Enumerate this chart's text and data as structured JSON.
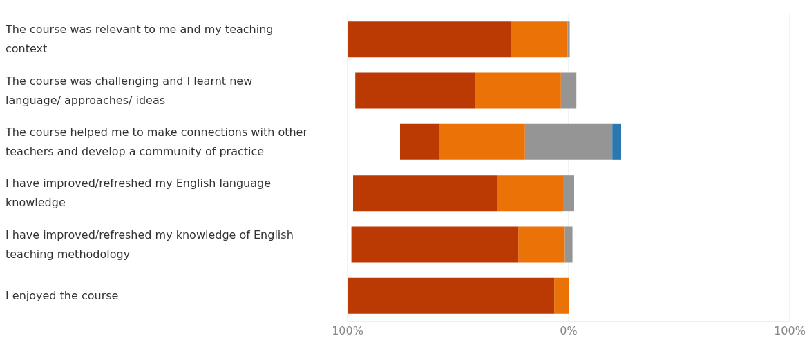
{
  "chart_data": {
    "type": "bar",
    "orientation": "horizontal",
    "stacked": true,
    "categories": [
      "The course was relevant to me and my teaching context",
      "The course was challenging and I learnt new language/ approaches/ ideas",
      "The course helped me to make connections with other teachers and develop a community of practice",
      "I have improved/refreshed my English language knowledge",
      "I have improved/refreshed my knowledge of English teaching methodology",
      "I enjoyed the course"
    ],
    "series": [
      {
        "color": "#959595",
        "values": [
          -0.5,
          -3.5,
          -19.75,
          -2.5,
          -1.75,
          0
        ]
      },
      {
        "color": "#eb7207",
        "values": [
          -25.5,
          -39,
          -38.5,
          -30,
          -21,
          -6.5
        ]
      },
      {
        "color": "#bb3a03",
        "values": [
          -74,
          -54,
          -18,
          -65,
          -75.5,
          -93.5
        ]
      },
      {
        "color": "#959595",
        "values": [
          0.5,
          3.5,
          19.75,
          2.5,
          1.75,
          0
        ]
      },
      {
        "color": "#2b78b0",
        "values": [
          0,
          0,
          4,
          0,
          0,
          0
        ]
      }
    ],
    "xlim": [
      -100,
      100
    ],
    "xticks": [
      {
        "value": -100,
        "label": "100%"
      },
      {
        "value": 0,
        "label": "0%"
      },
      {
        "value": 100,
        "label": "100%"
      }
    ],
    "grid": "x",
    "legend": false
  }
}
